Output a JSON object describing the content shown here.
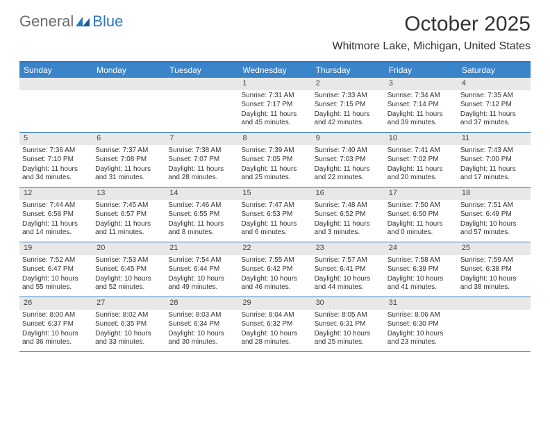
{
  "logo": {
    "general": "General",
    "blue": "Blue"
  },
  "title": "October 2025",
  "location": "Whitmore Lake, Michigan, United States",
  "colors": {
    "header_bg": "#3a84c9",
    "rule": "#2b78c2",
    "band": "#e8e8e8",
    "text": "#333333",
    "logo_gray": "#6a6a6a",
    "logo_blue": "#2b78c2"
  },
  "day_names": [
    "Sunday",
    "Monday",
    "Tuesday",
    "Wednesday",
    "Thursday",
    "Friday",
    "Saturday"
  ],
  "weeks": [
    [
      {
        "blank": true
      },
      {
        "blank": true
      },
      {
        "blank": true
      },
      {
        "n": "1",
        "sr": "Sunrise: 7:31 AM",
        "ss": "Sunset: 7:17 PM",
        "dl": "Daylight: 11 hours and 45 minutes."
      },
      {
        "n": "2",
        "sr": "Sunrise: 7:33 AM",
        "ss": "Sunset: 7:15 PM",
        "dl": "Daylight: 11 hours and 42 minutes."
      },
      {
        "n": "3",
        "sr": "Sunrise: 7:34 AM",
        "ss": "Sunset: 7:14 PM",
        "dl": "Daylight: 11 hours and 39 minutes."
      },
      {
        "n": "4",
        "sr": "Sunrise: 7:35 AM",
        "ss": "Sunset: 7:12 PM",
        "dl": "Daylight: 11 hours and 37 minutes."
      }
    ],
    [
      {
        "n": "5",
        "sr": "Sunrise: 7:36 AM",
        "ss": "Sunset: 7:10 PM",
        "dl": "Daylight: 11 hours and 34 minutes."
      },
      {
        "n": "6",
        "sr": "Sunrise: 7:37 AM",
        "ss": "Sunset: 7:08 PM",
        "dl": "Daylight: 11 hours and 31 minutes."
      },
      {
        "n": "7",
        "sr": "Sunrise: 7:38 AM",
        "ss": "Sunset: 7:07 PM",
        "dl": "Daylight: 11 hours and 28 minutes."
      },
      {
        "n": "8",
        "sr": "Sunrise: 7:39 AM",
        "ss": "Sunset: 7:05 PM",
        "dl": "Daylight: 11 hours and 25 minutes."
      },
      {
        "n": "9",
        "sr": "Sunrise: 7:40 AM",
        "ss": "Sunset: 7:03 PM",
        "dl": "Daylight: 11 hours and 22 minutes."
      },
      {
        "n": "10",
        "sr": "Sunrise: 7:41 AM",
        "ss": "Sunset: 7:02 PM",
        "dl": "Daylight: 11 hours and 20 minutes."
      },
      {
        "n": "11",
        "sr": "Sunrise: 7:43 AM",
        "ss": "Sunset: 7:00 PM",
        "dl": "Daylight: 11 hours and 17 minutes."
      }
    ],
    [
      {
        "n": "12",
        "sr": "Sunrise: 7:44 AM",
        "ss": "Sunset: 6:58 PM",
        "dl": "Daylight: 11 hours and 14 minutes."
      },
      {
        "n": "13",
        "sr": "Sunrise: 7:45 AM",
        "ss": "Sunset: 6:57 PM",
        "dl": "Daylight: 11 hours and 11 minutes."
      },
      {
        "n": "14",
        "sr": "Sunrise: 7:46 AM",
        "ss": "Sunset: 6:55 PM",
        "dl": "Daylight: 11 hours and 8 minutes."
      },
      {
        "n": "15",
        "sr": "Sunrise: 7:47 AM",
        "ss": "Sunset: 6:53 PM",
        "dl": "Daylight: 11 hours and 6 minutes."
      },
      {
        "n": "16",
        "sr": "Sunrise: 7:48 AM",
        "ss": "Sunset: 6:52 PM",
        "dl": "Daylight: 11 hours and 3 minutes."
      },
      {
        "n": "17",
        "sr": "Sunrise: 7:50 AM",
        "ss": "Sunset: 6:50 PM",
        "dl": "Daylight: 11 hours and 0 minutes."
      },
      {
        "n": "18",
        "sr": "Sunrise: 7:51 AM",
        "ss": "Sunset: 6:49 PM",
        "dl": "Daylight: 10 hours and 57 minutes."
      }
    ],
    [
      {
        "n": "19",
        "sr": "Sunrise: 7:52 AM",
        "ss": "Sunset: 6:47 PM",
        "dl": "Daylight: 10 hours and 55 minutes."
      },
      {
        "n": "20",
        "sr": "Sunrise: 7:53 AM",
        "ss": "Sunset: 6:45 PM",
        "dl": "Daylight: 10 hours and 52 minutes."
      },
      {
        "n": "21",
        "sr": "Sunrise: 7:54 AM",
        "ss": "Sunset: 6:44 PM",
        "dl": "Daylight: 10 hours and 49 minutes."
      },
      {
        "n": "22",
        "sr": "Sunrise: 7:55 AM",
        "ss": "Sunset: 6:42 PM",
        "dl": "Daylight: 10 hours and 46 minutes."
      },
      {
        "n": "23",
        "sr": "Sunrise: 7:57 AM",
        "ss": "Sunset: 6:41 PM",
        "dl": "Daylight: 10 hours and 44 minutes."
      },
      {
        "n": "24",
        "sr": "Sunrise: 7:58 AM",
        "ss": "Sunset: 6:39 PM",
        "dl": "Daylight: 10 hours and 41 minutes."
      },
      {
        "n": "25",
        "sr": "Sunrise: 7:59 AM",
        "ss": "Sunset: 6:38 PM",
        "dl": "Daylight: 10 hours and 38 minutes."
      }
    ],
    [
      {
        "n": "26",
        "sr": "Sunrise: 8:00 AM",
        "ss": "Sunset: 6:37 PM",
        "dl": "Daylight: 10 hours and 36 minutes."
      },
      {
        "n": "27",
        "sr": "Sunrise: 8:02 AM",
        "ss": "Sunset: 6:35 PM",
        "dl": "Daylight: 10 hours and 33 minutes."
      },
      {
        "n": "28",
        "sr": "Sunrise: 8:03 AM",
        "ss": "Sunset: 6:34 PM",
        "dl": "Daylight: 10 hours and 30 minutes."
      },
      {
        "n": "29",
        "sr": "Sunrise: 8:04 AM",
        "ss": "Sunset: 6:32 PM",
        "dl": "Daylight: 10 hours and 28 minutes."
      },
      {
        "n": "30",
        "sr": "Sunrise: 8:05 AM",
        "ss": "Sunset: 6:31 PM",
        "dl": "Daylight: 10 hours and 25 minutes."
      },
      {
        "n": "31",
        "sr": "Sunrise: 8:06 AM",
        "ss": "Sunset: 6:30 PM",
        "dl": "Daylight: 10 hours and 23 minutes."
      },
      {
        "blank": true
      }
    ]
  ]
}
